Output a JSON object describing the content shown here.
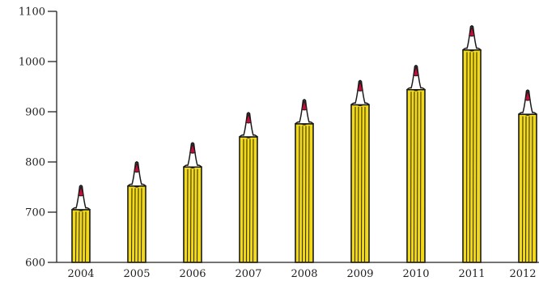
{
  "chart_data": {
    "type": "bar",
    "title": "",
    "xlabel": "",
    "ylabel": "",
    "categories": [
      "2004",
      "2005",
      "2006",
      "2007",
      "2008",
      "2009",
      "2010",
      "2011",
      "2012"
    ],
    "values": [
      705,
      752,
      790,
      850,
      876,
      914,
      944,
      1023,
      895
    ],
    "ylim": [
      600,
      1100
    ],
    "yticks": [
      600,
      700,
      800,
      900,
      1000,
      1100
    ],
    "ytick_labels": [
      "600",
      "700",
      "800",
      "900",
      "1000",
      "1100"
    ],
    "grid": false,
    "legend": "none",
    "mark_style": "pencil",
    "colors": {
      "pencil_body": "#F2DA1B",
      "pencil_stripe": "#3A3000",
      "outline": "#1A1A1A",
      "wood": "#FFFFFF",
      "lead": "#C0103A",
      "axis": "#222222"
    }
  }
}
